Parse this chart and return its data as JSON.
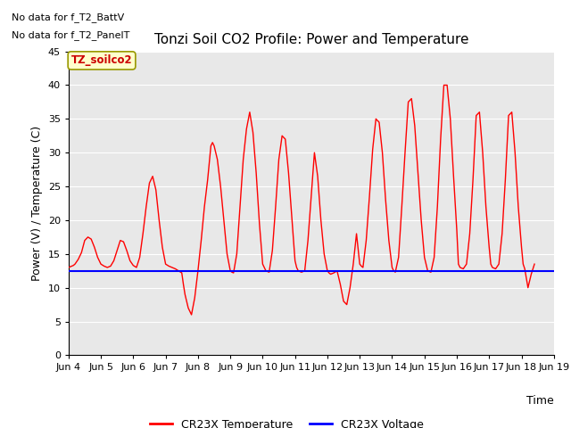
{
  "title": "Tonzi Soil CO2 Profile: Power and Temperature",
  "xlabel": "Time",
  "ylabel": "Power (V) / Temperature (C)",
  "xlim": [
    4,
    19
  ],
  "ylim": [
    0,
    45
  ],
  "yticks": [
    0,
    5,
    10,
    15,
    20,
    25,
    30,
    35,
    40,
    45
  ],
  "xtick_labels": [
    "Jun 4",
    "Jun 5",
    "Jun 6",
    "Jun 7",
    "Jun 8",
    "Jun 9",
    "Jun 10",
    "Jun 11",
    "Jun 12",
    "Jun 13",
    "Jun 14",
    "Jun 15",
    "Jun 16",
    "Jun 17",
    "Jun 18",
    "Jun 19"
  ],
  "xtick_positions": [
    4,
    5,
    6,
    7,
    8,
    9,
    10,
    11,
    12,
    13,
    14,
    15,
    16,
    17,
    18,
    19
  ],
  "no_data_text1": "No data for f_T2_BattV",
  "no_data_text2": "No data for f_T2_PanelT",
  "label_box_text": "TZ_soilco2",
  "legend_temp_label": "CR23X Temperature",
  "legend_volt_label": "CR23X Voltage",
  "temp_color": "#FF0000",
  "volt_color": "#0000FF",
  "background_color": "#E8E8E8",
  "voltage_value": 12.4,
  "temp_x": [
    4.0,
    4.05,
    4.1,
    4.15,
    4.2,
    4.3,
    4.4,
    4.5,
    4.6,
    4.7,
    4.8,
    4.9,
    5.0,
    5.1,
    5.2,
    5.3,
    5.4,
    5.5,
    5.6,
    5.7,
    5.8,
    5.9,
    6.0,
    6.1,
    6.2,
    6.3,
    6.4,
    6.5,
    6.6,
    6.7,
    6.8,
    6.9,
    7.0,
    7.1,
    7.2,
    7.3,
    7.4,
    7.5,
    7.55,
    7.6,
    7.7,
    7.8,
    7.9,
    8.0,
    8.1,
    8.2,
    8.3,
    8.4,
    8.45,
    8.5,
    8.6,
    8.7,
    8.8,
    8.9,
    9.0,
    9.05,
    9.1,
    9.2,
    9.3,
    9.4,
    9.5,
    9.6,
    9.7,
    9.8,
    9.9,
    10.0,
    10.05,
    10.1,
    10.2,
    10.3,
    10.4,
    10.5,
    10.6,
    10.7,
    10.8,
    10.9,
    11.0,
    11.05,
    11.1,
    11.2,
    11.3,
    11.4,
    11.5,
    11.6,
    11.7,
    11.8,
    11.9,
    12.0,
    12.05,
    12.1,
    12.2,
    12.3,
    12.35,
    12.4,
    12.5,
    12.6,
    12.7,
    12.8,
    12.9,
    13.0,
    13.05,
    13.1,
    13.2,
    13.3,
    13.4,
    13.5,
    13.6,
    13.7,
    13.8,
    13.9,
    14.0,
    14.05,
    14.1,
    14.2,
    14.3,
    14.4,
    14.5,
    14.6,
    14.7,
    14.8,
    14.9,
    15.0,
    15.05,
    15.1,
    15.2,
    15.3,
    15.4,
    15.5,
    15.6,
    15.7,
    15.8,
    15.9,
    16.0,
    16.05,
    16.1,
    16.2,
    16.3,
    16.4,
    16.5,
    16.6,
    16.7,
    16.8,
    16.9,
    17.0,
    17.05,
    17.1,
    17.2,
    17.3,
    17.4,
    17.5,
    17.6,
    17.7,
    17.8,
    17.9,
    18.0,
    18.05,
    18.1,
    18.2,
    18.3,
    18.4
  ],
  "temp_y": [
    13.0,
    13.1,
    13.2,
    13.3,
    13.5,
    14.2,
    15.2,
    17.0,
    17.5,
    17.2,
    16.0,
    14.5,
    13.5,
    13.2,
    13.0,
    13.2,
    14.0,
    15.5,
    17.0,
    16.8,
    15.5,
    14.0,
    13.3,
    13.0,
    14.5,
    18.0,
    22.0,
    25.5,
    26.5,
    24.5,
    20.0,
    16.0,
    13.5,
    13.2,
    13.0,
    12.8,
    12.5,
    12.2,
    10.5,
    9.0,
    7.0,
    6.0,
    8.5,
    12.5,
    17.0,
    22.0,
    26.0,
    31.0,
    31.5,
    31.0,
    29.0,
    25.0,
    20.0,
    15.0,
    12.5,
    12.3,
    12.2,
    15.0,
    22.0,
    29.0,
    33.5,
    36.0,
    33.0,
    27.0,
    19.5,
    13.5,
    13.0,
    12.5,
    12.3,
    15.5,
    22.0,
    29.0,
    32.5,
    32.0,
    27.0,
    20.5,
    14.0,
    13.0,
    12.5,
    12.3,
    12.5,
    17.0,
    23.5,
    30.0,
    26.5,
    20.0,
    15.0,
    12.5,
    12.2,
    12.0,
    12.2,
    12.5,
    11.5,
    10.5,
    8.0,
    7.5,
    10.0,
    13.5,
    18.0,
    13.5,
    13.2,
    13.0,
    17.0,
    23.5,
    30.5,
    35.0,
    34.5,
    30.0,
    23.0,
    17.0,
    13.0,
    12.5,
    12.3,
    14.5,
    22.0,
    30.0,
    37.5,
    38.0,
    34.0,
    27.0,
    20.0,
    14.5,
    13.5,
    12.5,
    12.3,
    14.5,
    22.0,
    32.0,
    40.0,
    40.0,
    35.0,
    26.5,
    18.5,
    13.5,
    13.0,
    12.8,
    13.5,
    18.0,
    26.0,
    35.5,
    36.0,
    30.0,
    22.0,
    16.0,
    13.5,
    13.0,
    12.8,
    13.5,
    18.0,
    26.0,
    35.5,
    36.0,
    30.0,
    22.0,
    16.0,
    13.5,
    12.8,
    10.0,
    12.0,
    13.5
  ]
}
